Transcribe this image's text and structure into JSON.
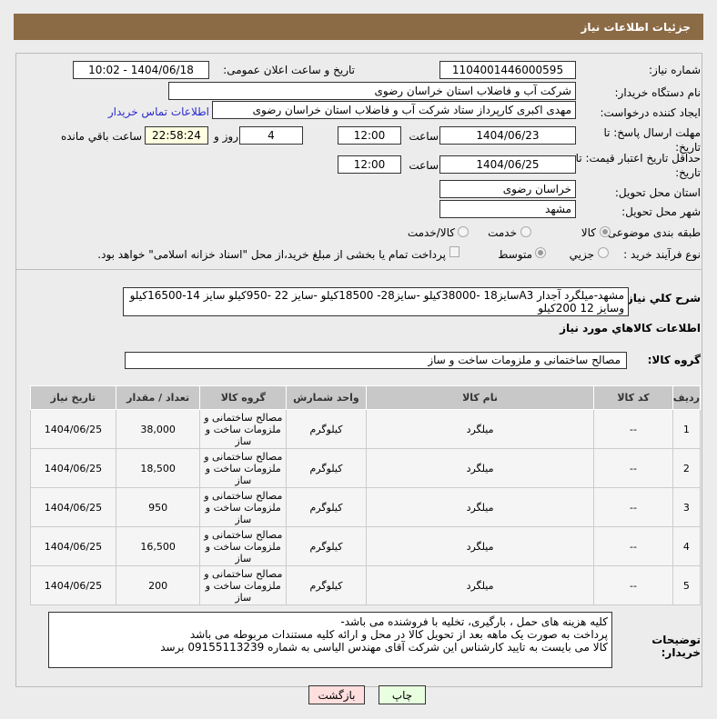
{
  "header": {
    "title": "جزئیات اطلاعات نیاز"
  },
  "form": {
    "need_number_label": "شماره نیاز:",
    "need_number": "1104001446000595",
    "announce_label": "تاریخ و ساعت اعلان عمومی:",
    "announce_value": "1404/06/18 - 10:02",
    "buyer_label": "نام دستگاه خریدار:",
    "buyer": "شرکت آب و فاضلاب استان خراسان رضوی",
    "creator_label": "ایجاد کننده درخواست:",
    "creator": "مهدی اکبری کارپرداز ستاد  شرکت آب و فاضلاب استان خراسان رضوی",
    "contact_link": "اطلاعات تماس خریدار",
    "deadline_label": "مهلت ارسال پاسخ: تا تاریخ:",
    "deadline_date": "1404/06/23",
    "time_label": "ساعت",
    "deadline_time": "12:00",
    "days": "4",
    "days_label": "روز و",
    "remaining": "22:58:24",
    "remaining_label": "ساعت باقي مانده",
    "validity_label": "حداقل تاریخ اعتبار قیمت: تا تاریخ:",
    "validity_date": "1404/06/25",
    "validity_time": "12:00",
    "province_label": "استان محل تحویل:",
    "province": "خراسان رضوی",
    "city_label": "شهر محل تحویل:",
    "city": "مشهد",
    "category_label": "طبقه بندی موضوعی:",
    "category_options": [
      "کالا",
      "خدمت",
      "کالا/خدمت"
    ],
    "category_selected": "کالا",
    "process_label": "نوع فرآیند خرید :",
    "process_options": [
      "جزیي",
      "متوسط"
    ],
    "process_selected": "متوسط",
    "payment_note": "پرداخت تمام یا بخشی از مبلغ خرید،از محل \"اسناد خزانه اسلامی\" خواهد بود.",
    "description_label": "شرح کلي نیاز:",
    "description": "مشهد-میلگرد آجدار A3سایز18 -38000کیلو -سایز28- 18500کیلو -سایز 22 -950کیلو سایز 14-16500کیلو وسایز 12 200کیلو",
    "goods_info_title": "اطلاعات کالاهاي مورد نیاز",
    "goods_group_label": "گروه کالا:",
    "goods_group": "مصالح ساختمانی و ملزومات ساخت و ساز"
  },
  "table": {
    "headers": [
      "ردیف",
      "کد کالا",
      "نام کالا",
      "واحد شمارش",
      "گروه کالا",
      "تعداد / مقدار",
      "تاریخ نیاز"
    ],
    "rows": [
      [
        "1",
        "--",
        "میلگرد",
        "کیلوگرم",
        "مصالح ساختمانی و ملزومات ساخت و ساز",
        "38,000",
        "1404/06/25"
      ],
      [
        "2",
        "--",
        "میلگرد",
        "کیلوگرم",
        "مصالح ساختمانی و ملزومات ساخت و ساز",
        "18,500",
        "1404/06/25"
      ],
      [
        "3",
        "--",
        "میلگرد",
        "کیلوگرم",
        "مصالح ساختمانی و ملزومات ساخت و ساز",
        "950",
        "1404/06/25"
      ],
      [
        "4",
        "--",
        "میلگرد",
        "کیلوگرم",
        "مصالح ساختمانی و ملزومات ساخت و ساز",
        "16,500",
        "1404/06/25"
      ],
      [
        "5",
        "--",
        "میلگرد",
        "کیلوگرم",
        "مصالح ساختمانی و ملزومات ساخت و ساز",
        "200",
        "1404/06/25"
      ]
    ]
  },
  "notes": {
    "label": "توضیحات خریدار:",
    "lines": [
      "کلیه هزینه های حمل ، بارگیری، تخلیه با فروشنده می باشد-",
      "پرداخت به صورت یک ماهه بعد از تحویل کالا در محل و ارائه کلیه مستندات مربوطه  می باشد",
      "کالا می بایست به تایید  کارشناس این شرکت آقای مهندس الیاسی به شماره 09155113239 برسد"
    ]
  },
  "buttons": {
    "print": "چاپ",
    "back": "بازگشت"
  }
}
